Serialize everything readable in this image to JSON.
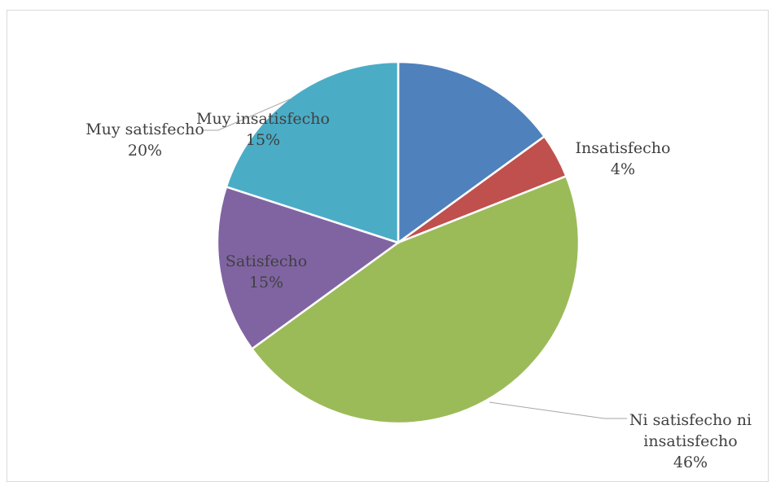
{
  "chart_data": {
    "type": "pie",
    "title": "",
    "categories": [
      "Muy insatisfecho",
      "Insatisfecho",
      "Ni satisfecho ni insatisfecho",
      "Satisfecho",
      "Muy satisfecho"
    ],
    "values": [
      15,
      4,
      46,
      15,
      20
    ],
    "label_lines": [
      [
        "Muy insatisfecho",
        "15%"
      ],
      [
        "Insatisfecho",
        "4%"
      ],
      [
        "Ni satisfecho ni",
        "insatisfecho",
        "46%"
      ],
      [
        "Satisfecho",
        "15%"
      ],
      [
        "Muy satisfecho",
        "20%"
      ]
    ],
    "colors": [
      "#4F81BD",
      "#C0504D",
      "#9BBB59",
      "#8064A2",
      "#4BACC6"
    ],
    "legend": "none"
  }
}
